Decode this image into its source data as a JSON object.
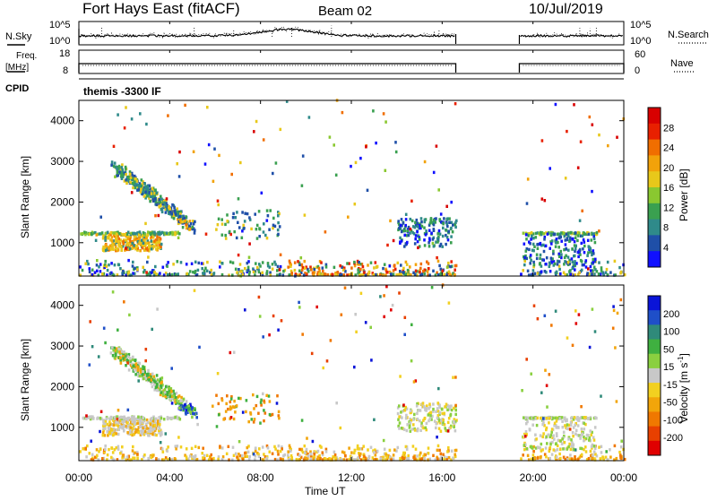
{
  "header": {
    "station": "Fort Hays East (fitACF)",
    "beam": "Beam 02",
    "date": "10/Jul/2019",
    "cpid_text": "themis -3300 IF"
  },
  "nsky_panel": {
    "left_label": "N.Sky",
    "left_ticks": [
      "10^5",
      "10^0"
    ],
    "right_ticks": [
      "10^5",
      "10^0"
    ],
    "right_label": "N.Search"
  },
  "freq_panel": {
    "left_label_line1": "Freq.",
    "left_label_line2": "[MHz]",
    "left_ticks": [
      "18",
      "8"
    ],
    "right_ticks": [
      "60",
      "0"
    ],
    "right_label": "Nave"
  },
  "cpid_label": "CPID",
  "x_axis": {
    "label": "Time UT",
    "ticks": [
      "00:00",
      "04:00",
      "08:00",
      "12:00",
      "16:00",
      "20:00",
      "00:00"
    ]
  },
  "chart_data": [
    {
      "type": "heatmap",
      "name": "power",
      "ylabel": "Slant Range [km]",
      "yticks": [
        1000,
        2000,
        3000,
        4000
      ],
      "ylim": [
        180,
        4500
      ],
      "xlim_hours": [
        0,
        24
      ],
      "data_gaps_hours": [
        [
          16.6,
          19.4
        ]
      ],
      "colorbar": {
        "label": "Power [dB]",
        "ticks": [
          "4",
          "8",
          "12",
          "16",
          "20",
          "24",
          "28"
        ],
        "colors": [
          "#1010ff",
          "#1f4fa8",
          "#2f8a8a",
          "#3aa050",
          "#8ac830",
          "#e8c81a",
          "#f2a20a",
          "#f06e00",
          "#e82000",
          "#d80000"
        ]
      }
    },
    {
      "type": "heatmap",
      "name": "velocity",
      "ylabel": "Slant Range [km]",
      "yticks": [
        1000,
        2000,
        3000,
        4000
      ],
      "ylim": [
        180,
        4500
      ],
      "xlim_hours": [
        0,
        24
      ],
      "data_gaps_hours": [
        [
          16.6,
          19.4
        ]
      ],
      "colorbar": {
        "label": "Velocity [m s^-1]",
        "ticks": [
          "200",
          "100",
          "50",
          "15",
          "-15",
          "-50",
          "-100",
          "-200"
        ],
        "colors": [
          "#0a14d8",
          "#1f4fc8",
          "#2f8a7a",
          "#3fb040",
          "#8ad040",
          "#c8c8c8",
          "#f2d020",
          "#f2a50a",
          "#f07800",
          "#e84000",
          "#e00000"
        ]
      }
    }
  ]
}
